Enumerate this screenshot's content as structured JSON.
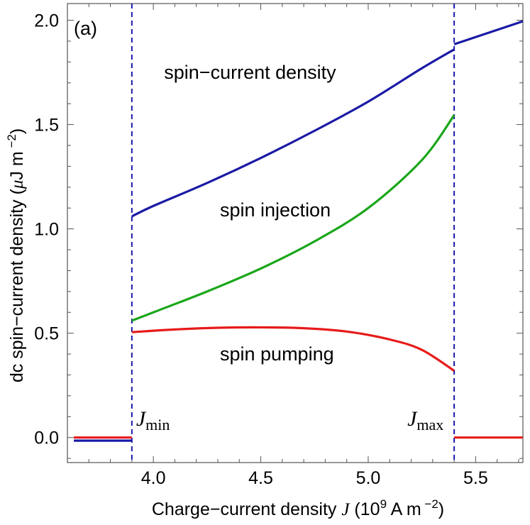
{
  "chart_data": {
    "type": "line",
    "panel_label": "(a)",
    "xlabel": {
      "prefix": "Charge−current  density ",
      "var": "J",
      "units_open": " (10",
      "units_exp": "9",
      "units_mid": " A m",
      "units_exp2": " −2",
      "units_close": ")"
    },
    "ylabel": {
      "main": "dc  spin−current  density  (",
      "mu": "μ",
      "units": "J m",
      "units_exp": " −2",
      "units_close": ")"
    },
    "xlim": [
      3.6,
      5.72
    ],
    "ylim": [
      -0.12,
      2.08
    ],
    "xticks": [
      4.0,
      4.5,
      5.0,
      5.5
    ],
    "xtick_labels": [
      "4.0",
      "4.5",
      "5.0",
      "5.5"
    ],
    "yticks": [
      0.0,
      0.5,
      1.0,
      1.5,
      2.0
    ],
    "ytick_labels": [
      "0.0",
      "0.5",
      "1.0",
      "1.5",
      "2.0"
    ],
    "vlines": [
      {
        "x": 3.9,
        "label_main": "J",
        "label_sub": "min",
        "color": "#1a1aa6"
      },
      {
        "x": 5.4,
        "label_main": "J",
        "label_sub": "max",
        "color": "#1a1aa6"
      }
    ],
    "series": [
      {
        "name": "spin−current density",
        "color": "#1a1aa6",
        "segments": [
          {
            "x": [
              3.63,
              3.9
            ],
            "y": [
              -0.015,
              -0.015
            ]
          },
          {
            "x": [
              3.9,
              4.0,
              4.25,
              4.5,
              4.75,
              5.0,
              5.25,
              5.4
            ],
            "y": [
              1.06,
              1.11,
              1.22,
              1.34,
              1.47,
              1.61,
              1.77,
              1.86
            ]
          },
          {
            "x": [
              5.4,
              5.72
            ],
            "y": [
              1.885,
              1.995
            ]
          }
        ]
      },
      {
        "name": "spin injection",
        "color": "#1aa61a",
        "segments": [
          {
            "x": [
              3.9,
              4.0,
              4.25,
              4.5,
              4.75,
              5.0,
              5.25,
              5.4
            ],
            "y": [
              0.56,
              0.6,
              0.7,
              0.81,
              0.94,
              1.1,
              1.33,
              1.545
            ]
          }
        ]
      },
      {
        "name": "spin pumping",
        "color": "#e81a1a",
        "segments": [
          {
            "x": [
              3.63,
              3.9
            ],
            "y": [
              0.0,
              0.0
            ]
          },
          {
            "x": [
              3.9,
              4.1,
              4.3,
              4.5,
              4.7,
              4.9,
              5.1,
              5.25,
              5.4
            ],
            "y": [
              0.505,
              0.518,
              0.526,
              0.528,
              0.524,
              0.508,
              0.47,
              0.42,
              0.32
            ]
          },
          {
            "x": [
              5.4,
              5.72
            ],
            "y": [
              0.0,
              0.0
            ]
          }
        ]
      }
    ],
    "annotations": [
      {
        "text": "spin−current density",
        "x": 4.05,
        "y": 1.72
      },
      {
        "text": "spin injection",
        "x": 4.31,
        "y": 1.06
      },
      {
        "text": "spin pumping",
        "x": 4.31,
        "y": 0.37
      }
    ]
  }
}
